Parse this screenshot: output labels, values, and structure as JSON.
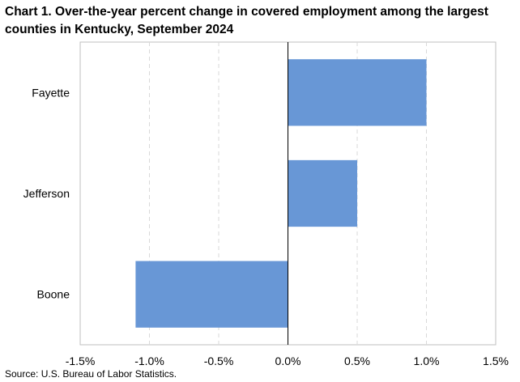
{
  "title": "Chart 1. Over-the-year percent change in covered employment among the largest counties in Kentucky, September 2024",
  "source": "Source: U.S. Bureau of Labor Statistics.",
  "colors": {
    "bar": "#6897d6",
    "frame": "#bfbfbf",
    "grid": "#d9d9d9",
    "zero_axis": "#000000"
  },
  "chart_data": {
    "type": "bar",
    "orientation": "horizontal",
    "categories": [
      "Fayette",
      "Jefferson",
      "Boone"
    ],
    "values": [
      1.0,
      0.5,
      -1.1
    ],
    "xlim": [
      -1.5,
      1.5
    ],
    "xticks": [
      -1.5,
      -1.0,
      -0.5,
      0.0,
      0.5,
      1.0,
      1.5
    ],
    "xtick_labels": [
      "-1.5%",
      "-1.0%",
      "-0.5%",
      "0.0%",
      "0.5%",
      "1.0%",
      "1.5%"
    ],
    "grid": "vertical dashed",
    "xlabel": "",
    "ylabel": ""
  }
}
